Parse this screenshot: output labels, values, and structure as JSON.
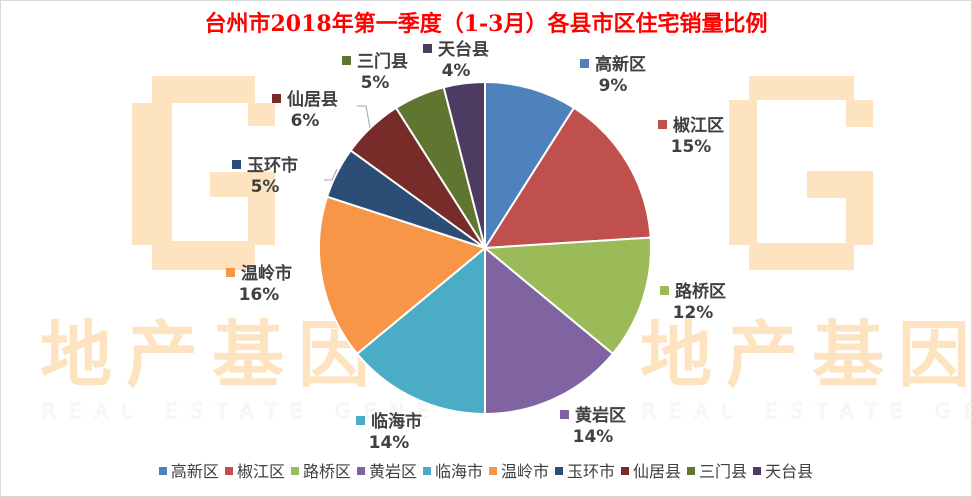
{
  "chart_data": {
    "type": "pie",
    "title": "台州市2018年第一季度（1-3月）各县市区住宅销量比例",
    "start_angle_deg": 0,
    "direction": "clockwise",
    "categories": [
      "高新区",
      "椒江区",
      "路桥区",
      "黄岩区",
      "临海市",
      "温岭市",
      "玉环市",
      "仙居县",
      "三门县",
      "天台县"
    ],
    "values": [
      9,
      15,
      12,
      14,
      14,
      16,
      5,
      6,
      5,
      4
    ],
    "labels": [
      "9%",
      "15%",
      "12%",
      "14%",
      "14%",
      "16%",
      "5%",
      "6%",
      "5%",
      "4%"
    ],
    "colors": [
      "#4f81bd",
      "#c0504d",
      "#9bbb59",
      "#8064a2",
      "#4bacc6",
      "#f79646",
      "#2c4d75",
      "#772c2a",
      "#5f7530",
      "#4d3b62"
    ],
    "legend_position": "bottom",
    "data_labels": "category and percentage, outside end"
  },
  "watermark": {
    "logo_letter": "G",
    "cn_text": "地产基因",
    "en_text": "REAL ESTATE GENE",
    "color": "#fde3c0"
  },
  "colors": {
    "title": "#ff0000",
    "label_text": "#404040",
    "border": "#d9d9d9"
  }
}
